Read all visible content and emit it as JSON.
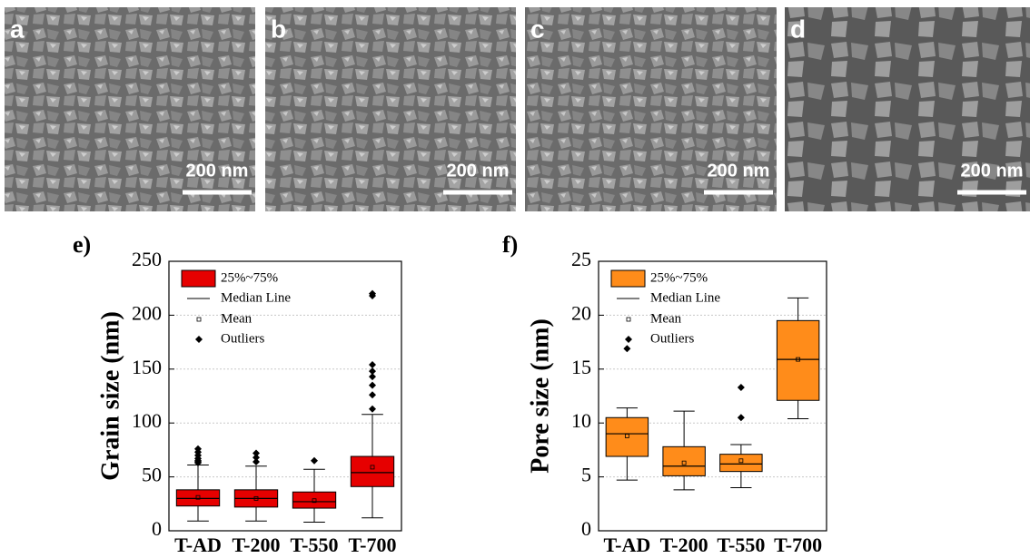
{
  "panels": [
    {
      "label": "a",
      "scale_bar": "200 nm"
    },
    {
      "label": "b",
      "scale_bar": "200 nm"
    },
    {
      "label": "c",
      "scale_bar": "200 nm"
    },
    {
      "label": "d",
      "scale_bar": "200 nm"
    }
  ],
  "chart_data": [
    {
      "type": "box",
      "panel_label": "e)",
      "y_label": "Grain size (nm)",
      "color": "#e60000",
      "categories": [
        "T-AD",
        "T-200",
        "T-550",
        "T-700"
      ],
      "legend": [
        "25%~75%",
        "Median Line",
        "Mean",
        "Outliers"
      ],
      "ylim": [
        0,
        250
      ],
      "yticks": [
        0,
        50,
        100,
        150,
        200,
        250
      ],
      "grid": true,
      "boxes": [
        {
          "whisker_low": 9,
          "q1": 23,
          "median": 30,
          "q3": 38,
          "whisker_high": 61,
          "mean": 31,
          "outliers": [
            63,
            64,
            65,
            67,
            70,
            73,
            76
          ]
        },
        {
          "whisker_low": 9,
          "q1": 22,
          "median": 30,
          "q3": 38,
          "whisker_high": 60,
          "mean": 30,
          "outliers": [
            64,
            68,
            72
          ]
        },
        {
          "whisker_low": 8,
          "q1": 21,
          "median": 27,
          "q3": 36,
          "whisker_high": 57,
          "mean": 28,
          "outliers": [
            65
          ]
        },
        {
          "whisker_low": 12,
          "q1": 41,
          "median": 54,
          "q3": 69,
          "whisker_high": 108,
          "mean": 59,
          "outliers": [
            113,
            126,
            135,
            143,
            148,
            154,
            218,
            220
          ]
        }
      ]
    },
    {
      "type": "box",
      "panel_label": "f)",
      "y_label": "Pore size (nm)",
      "color": "#ff8c1a",
      "categories": [
        "T-AD",
        "T-200",
        "T-550",
        "T-700"
      ],
      "legend": [
        "25%~75%",
        "Median Line",
        "Mean",
        "Outliers"
      ],
      "ylim": [
        0,
        25
      ],
      "yticks": [
        0,
        5,
        10,
        15,
        20,
        25
      ],
      "grid": true,
      "boxes": [
        {
          "whisker_low": 4.7,
          "q1": 6.9,
          "median": 9.0,
          "q3": 10.5,
          "whisker_high": 11.4,
          "mean": 8.8,
          "outliers": [
            16.9
          ]
        },
        {
          "whisker_low": 3.8,
          "q1": 5.1,
          "median": 6.0,
          "q3": 7.8,
          "whisker_high": 11.1,
          "mean": 6.3,
          "outliers": []
        },
        {
          "whisker_low": 4.0,
          "q1": 5.5,
          "median": 6.2,
          "q3": 7.1,
          "whisker_high": 8.0,
          "mean": 6.5,
          "outliers": [
            10.5,
            13.3
          ]
        },
        {
          "whisker_low": 10.4,
          "q1": 12.1,
          "median": 15.9,
          "q3": 19.5,
          "whisker_high": 21.6,
          "mean": 15.9,
          "outliers": []
        }
      ]
    }
  ]
}
